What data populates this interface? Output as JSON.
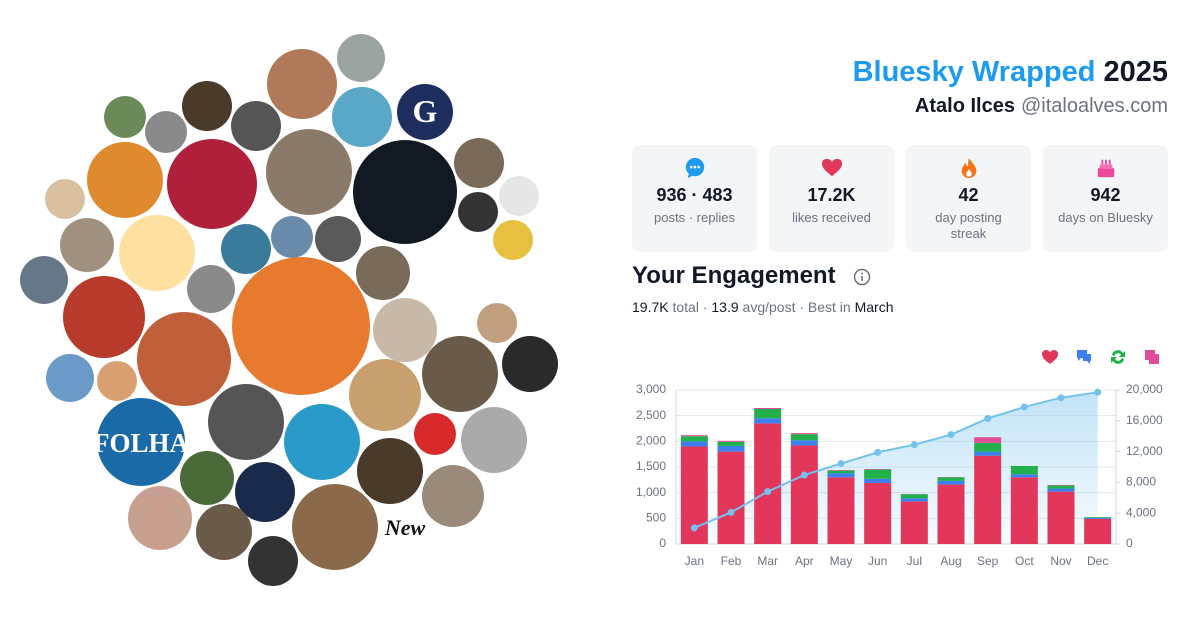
{
  "header": {
    "title": "Bluesky Wrapped",
    "year": "2025",
    "name": "Atalo Ilces",
    "handle": "@italoalves.com"
  },
  "avatars": {
    "logos": [
      "G",
      "FOLHA",
      "New"
    ]
  },
  "stats": [
    {
      "value": "936 · 483",
      "label": "posts · replies"
    },
    {
      "value": "17.2K",
      "label": "likes received"
    },
    {
      "value": "42",
      "label": "day posting streak"
    },
    {
      "value": "942",
      "label": "days on Bluesky"
    }
  ],
  "engagement": {
    "title": "Your Engagement",
    "summary": [
      "19.7K",
      "total ·",
      "13.9",
      "avg/post · Best in",
      "March"
    ]
  },
  "chart_data": {
    "type": "bar",
    "stacked": true,
    "categories": [
      "Jan",
      "Feb",
      "Mar",
      "Apr",
      "May",
      "Jun",
      "Jul",
      "Aug",
      "Sep",
      "Oct",
      "Nov",
      "Dec"
    ],
    "series": [
      {
        "color": "#e2375a",
        "icon": "heart",
        "values": [
          1900,
          1800,
          2350,
          1920,
          1300,
          1190,
          830,
          1160,
          1720,
          1300,
          1020,
          490
        ]
      },
      {
        "color": "#3b7ff0",
        "icon": "reply",
        "values": [
          100,
          110,
          100,
          100,
          80,
          80,
          60,
          70,
          80,
          60,
          60,
          20
        ]
      },
      {
        "color": "#22b04a",
        "icon": "repost",
        "values": [
          100,
          80,
          180,
          120,
          50,
          180,
          80,
          70,
          170,
          160,
          60,
          15
        ]
      },
      {
        "color": "#e04b9a",
        "icon": "quote",
        "values": [
          20,
          20,
          20,
          20,
          10,
          10,
          5,
          5,
          110,
          0,
          10,
          0
        ]
      },
      {
        "type": "line",
        "axis": "y2",
        "color": "#74c2ec",
        "values": [
          2100,
          4100,
          6800,
          8950,
          10450,
          11900,
          12900,
          14200,
          16300,
          17800,
          19000,
          19700
        ]
      }
    ],
    "ylim": [
      0,
      3000
    ],
    "yticks": [
      0,
      500,
      {
        "value": 1000,
        "label": "1,000"
      },
      {
        "value": 1500,
        "label": "1,500"
      },
      {
        "value": 2000,
        "label": "2,000"
      },
      {
        "value": 2500,
        "label": "2,500"
      },
      {
        "value": 3000,
        "label": "3,000"
      }
    ],
    "y2lim": [
      0,
      20000
    ],
    "y2ticks": [
      0,
      {
        "value": 4000,
        "label": "4,000"
      },
      {
        "value": 8000,
        "label": "8,000"
      },
      {
        "value": 12000,
        "label": "12,000"
      },
      {
        "value": 16000,
        "label": "16,000"
      },
      {
        "value": 20000,
        "label": "20,000"
      }
    ],
    "grid": true
  }
}
